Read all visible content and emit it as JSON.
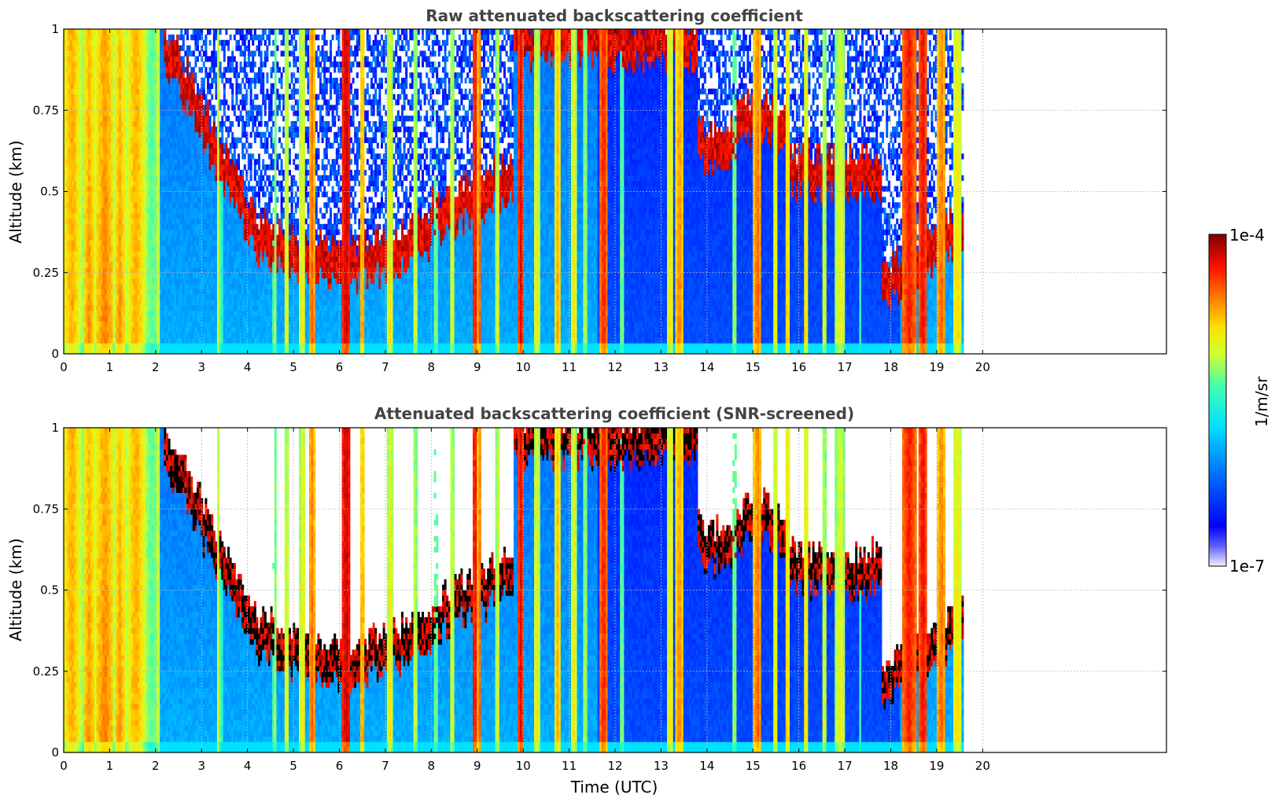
{
  "chart_data": [
    {
      "type": "heatmap",
      "title": "Raw attenuated backscattering coefficient",
      "xlabel": "",
      "ylabel": "Altitude (km)",
      "xlim": [
        0,
        24
      ],
      "ylim": [
        0,
        1
      ],
      "x_ticks": [
        "0",
        "1",
        "2",
        "3",
        "4",
        "5",
        "6",
        "7",
        "8",
        "9",
        "10",
        "11",
        "12",
        "13",
        "14",
        "15",
        "16",
        "17",
        "18",
        "19",
        "20"
      ],
      "y_ticks": [
        "0",
        "0.25",
        "0.5",
        "0.75",
        "1"
      ],
      "data_end_time": 19.6,
      "grid": true,
      "screened": false
    },
    {
      "type": "heatmap",
      "title": "Attenuated backscattering coefficient (SNR-screened)",
      "xlabel": "Time (UTC)",
      "ylabel": "Altitude (km)",
      "xlim": [
        0,
        24
      ],
      "ylim": [
        0,
        1
      ],
      "x_ticks": [
        "0",
        "1",
        "2",
        "3",
        "4",
        "5",
        "6",
        "7",
        "8",
        "9",
        "10",
        "11",
        "12",
        "13",
        "14",
        "15",
        "16",
        "17",
        "18",
        "19",
        "20"
      ],
      "y_ticks": [
        "0",
        "0.25",
        "0.5",
        "0.75",
        "1"
      ],
      "data_end_time": 19.6,
      "grid": true,
      "screened": true
    }
  ],
  "colorbar": {
    "max_label": "1e-4",
    "min_label": "1e-7",
    "unit_label": "1/m/sr",
    "colormap": "jet"
  }
}
